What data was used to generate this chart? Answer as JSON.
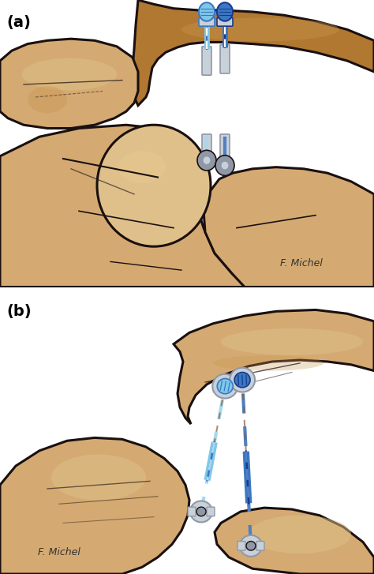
{
  "figure_width": 4.74,
  "figure_height": 7.27,
  "dpi": 100,
  "bg": "#ffffff",
  "skin": "#d4aa72",
  "skin_light": "#dfc08a",
  "skin_mid": "#c99550",
  "skin_dark": "#b07830",
  "skin_shadow": "#c4904a",
  "outline": "#1a1010",
  "blue_light": "#7ec8e8",
  "blue_mid": "#3a78c4",
  "blue_dark": "#1a3a8a",
  "blue_dashed_light": "#a8d8f0",
  "blue_dashed_dark": "#5080c0",
  "brown_dashed": "#8B6040",
  "grey": "#9098a8",
  "grey_light": "#c8d0d8",
  "grey_mid": "#8090a0",
  "label_fs": 14,
  "sig_fs": 9,
  "label_a": "(a)",
  "label_b": "(b)",
  "signature": "F. Michel"
}
